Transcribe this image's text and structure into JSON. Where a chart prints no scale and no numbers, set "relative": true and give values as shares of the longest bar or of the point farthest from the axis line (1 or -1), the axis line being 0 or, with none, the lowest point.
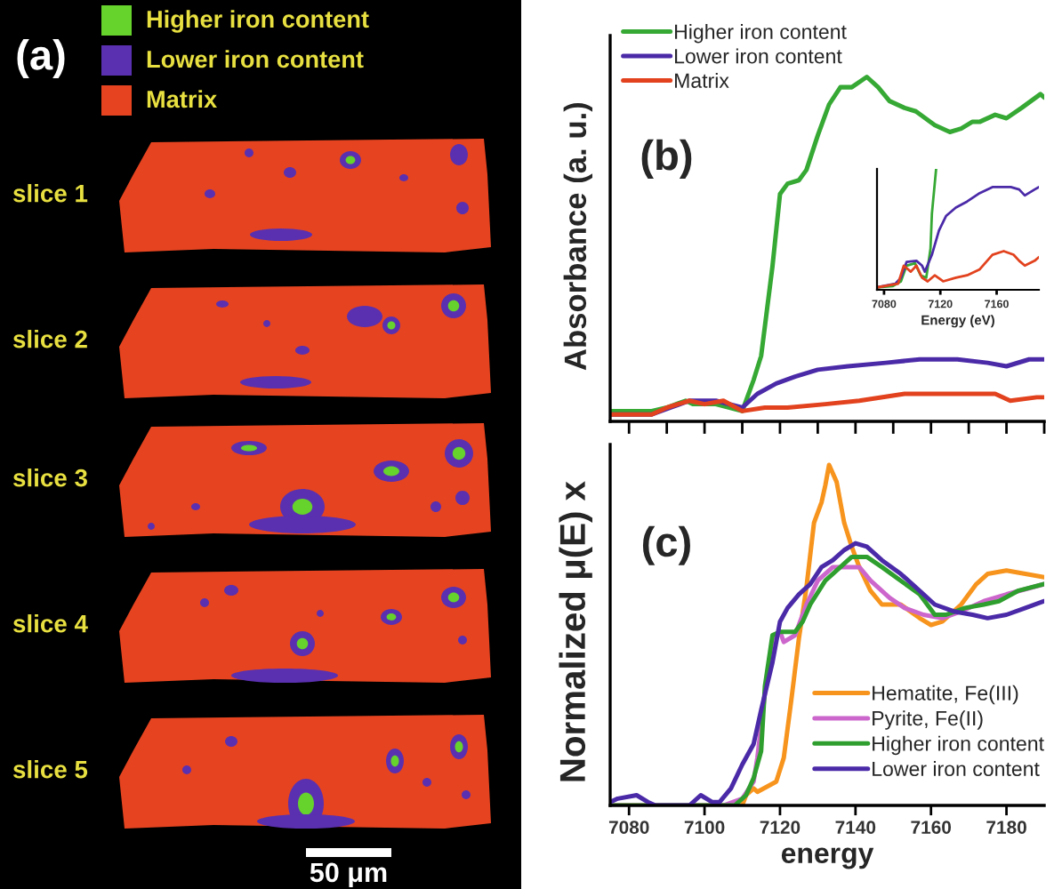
{
  "chart_data": [
    {
      "type": "other",
      "title": "(a)",
      "categories": [
        "Higher iron content",
        "Lower iron content",
        "Matrix"
      ],
      "colors": [
        "#66d22c",
        "#5a30b0",
        "#e64420"
      ],
      "annotations": [
        "slice 1",
        "slice 2",
        "slice 3",
        "slice 4",
        "slice 5",
        "50 μm"
      ]
    },
    {
      "type": "line",
      "title": "(b)",
      "ylabel": "Absorbance (a. u.)",
      "relative": true,
      "xlim": [
        7075,
        7190
      ],
      "xticks": [
        {
          "value": 7080,
          "label": null
        },
        {
          "value": 7090,
          "label": null
        },
        {
          "value": 7100,
          "label": null
        },
        {
          "value": 7110,
          "label": null
        },
        {
          "value": 7120,
          "label": null
        },
        {
          "value": 7130,
          "label": null
        },
        {
          "value": 7140,
          "label": null
        },
        {
          "value": 7150,
          "label": null
        },
        {
          "value": 7160,
          "label": null
        },
        {
          "value": 7170,
          "label": null
        },
        {
          "value": 7180,
          "label": null
        },
        {
          "value": 7190,
          "label": null
        }
      ],
      "tick_labels": false,
      "legend": "top left",
      "series": [
        {
          "name": "Higher iron content",
          "color": "#36a834",
          "x": [
            7075,
            7086,
            7090,
            7095,
            7097,
            7103,
            7110,
            7113,
            7115,
            7118,
            7120,
            7122,
            7125,
            7127,
            7130,
            7133,
            7136,
            7139,
            7143,
            7146,
            7149,
            7153,
            7156,
            7161,
            7165,
            7168,
            7171,
            7173,
            7177,
            7180,
            7184,
            7189,
            7190
          ],
          "values": [
            0.03,
            0.03,
            0.04,
            0.06,
            0.05,
            0.05,
            0.03,
            0.12,
            0.19,
            0.45,
            0.66,
            0.69,
            0.7,
            0.73,
            0.83,
            0.92,
            0.97,
            0.97,
            1.0,
            0.97,
            0.93,
            0.91,
            0.9,
            0.86,
            0.84,
            0.85,
            0.87,
            0.87,
            0.89,
            0.88,
            0.91,
            0.95,
            0.94
          ]
        },
        {
          "name": "Lower iron content",
          "color": "#4b2aa8",
          "x": [
            7075,
            7086,
            7091,
            7096,
            7103,
            7110,
            7114,
            7119,
            7124,
            7130,
            7138,
            7148,
            7157,
            7167,
            7175,
            7180,
            7186,
            7190
          ],
          "values": [
            0.02,
            0.02,
            0.04,
            0.06,
            0.06,
            0.04,
            0.08,
            0.11,
            0.13,
            0.15,
            0.16,
            0.17,
            0.18,
            0.18,
            0.17,
            0.16,
            0.18,
            0.18
          ]
        },
        {
          "name": "Matrix",
          "color": "#e2421e",
          "x": [
            7075,
            7086,
            7090,
            7096,
            7100,
            7105,
            7110,
            7116,
            7122,
            7132,
            7141,
            7153,
            7164,
            7177,
            7181,
            7188,
            7190
          ],
          "values": [
            0.02,
            0.02,
            0.04,
            0.06,
            0.05,
            0.06,
            0.03,
            0.04,
            0.04,
            0.05,
            0.06,
            0.08,
            0.08,
            0.08,
            0.06,
            0.07,
            0.07
          ]
        }
      ]
    },
    {
      "type": "line",
      "xlabel": "Energy (eV)",
      "relative": true,
      "xlim": [
        7075,
        7190
      ],
      "xticks": [
        7080,
        7120,
        7160
      ],
      "tick_labels": "x",
      "series": [
        {
          "color": "#36a834",
          "x": [
            7075,
            7086,
            7092,
            7096,
            7102,
            7106,
            7110,
            7113,
            7114,
            7117
          ],
          "values": [
            0.02,
            0.03,
            0.07,
            0.2,
            0.22,
            0.12,
            0.1,
            0.34,
            0.63,
            1.0
          ]
        },
        {
          "color": "#4b2aa8",
          "x": [
            7075,
            7088,
            7092,
            7096,
            7103,
            7107,
            7109,
            7114,
            7119,
            7124,
            7131,
            7139,
            7148,
            7157,
            7170,
            7176,
            7180,
            7187,
            7190
          ],
          "values": [
            0.02,
            0.05,
            0.1,
            0.23,
            0.24,
            0.2,
            0.15,
            0.29,
            0.49,
            0.61,
            0.68,
            0.73,
            0.8,
            0.85,
            0.85,
            0.83,
            0.78,
            0.83,
            0.85
          ]
        },
        {
          "color": "#e2421e",
          "x": [
            7075,
            7090,
            7094,
            7099,
            7103,
            7107,
            7111,
            7116,
            7122,
            7131,
            7139,
            7148,
            7157,
            7165,
            7172,
            7176,
            7180,
            7187,
            7190
          ],
          "values": [
            0.02,
            0.05,
            0.2,
            0.15,
            0.2,
            0.1,
            0.07,
            0.12,
            0.07,
            0.1,
            0.12,
            0.17,
            0.29,
            0.32,
            0.29,
            0.24,
            0.2,
            0.24,
            0.27
          ]
        }
      ]
    },
    {
      "type": "line",
      "title": "(c)",
      "xlabel": "energy",
      "ylabel": "Normalized μ(E) x",
      "relative": true,
      "xlim": [
        7075,
        7190
      ],
      "xticks": [
        7080,
        7100,
        7120,
        7140,
        7160,
        7180
      ],
      "tick_labels": "x",
      "legend": "bottom right",
      "series": [
        {
          "name": "Hematite, Fe(III)",
          "color": "#f7941d",
          "x": [
            7075,
            7110,
            7111,
            7113,
            7114,
            7119,
            7121,
            7123,
            7125,
            7127,
            7129,
            7131,
            7132,
            7133,
            7135,
            7137,
            7139,
            7141,
            7144,
            7147,
            7152,
            7157,
            7160,
            7163,
            7168,
            7172,
            7175,
            7180,
            7185,
            7190
          ],
          "values": [
            0,
            0,
            0.03,
            0.05,
            0.04,
            0.07,
            0.14,
            0.31,
            0.49,
            0.64,
            0.83,
            0.89,
            0.94,
            1.0,
            0.95,
            0.83,
            0.76,
            0.7,
            0.63,
            0.59,
            0.59,
            0.55,
            0.53,
            0.54,
            0.59,
            0.65,
            0.68,
            0.69,
            0.68,
            0.67
          ]
        },
        {
          "name": "Pyrite, Fe(II)",
          "color": "#cc66cc",
          "x": [
            7075,
            7105,
            7110,
            7113,
            7114,
            7116,
            7118,
            7120,
            7121,
            7124,
            7127,
            7130,
            7134,
            7138,
            7141,
            7144,
            7149,
            7153,
            7158,
            7163,
            7168,
            7174,
            7180,
            7190
          ],
          "values": [
            0,
            0,
            0.02,
            0.07,
            0.14,
            0.33,
            0.49,
            0.51,
            0.48,
            0.5,
            0.59,
            0.66,
            0.7,
            0.7,
            0.7,
            0.66,
            0.61,
            0.58,
            0.56,
            0.55,
            0.57,
            0.6,
            0.62,
            0.65
          ]
        },
        {
          "name": "Higher iron content",
          "color": "#2e9e2e",
          "x": [
            7075,
            7108,
            7111,
            7113,
            7115,
            7116,
            7118,
            7120,
            7124,
            7126,
            7128,
            7132,
            7136,
            7139,
            7143,
            7147,
            7152,
            7157,
            7161,
            7164,
            7169,
            7174,
            7178,
            7183,
            7190
          ],
          "values": [
            0,
            0,
            0.03,
            0.08,
            0.16,
            0.35,
            0.5,
            0.51,
            0.51,
            0.54,
            0.59,
            0.66,
            0.7,
            0.73,
            0.73,
            0.7,
            0.66,
            0.62,
            0.56,
            0.56,
            0.58,
            0.59,
            0.6,
            0.63,
            0.65
          ]
        },
        {
          "name": "Lower iron content",
          "color": "#4b2aa8",
          "x": [
            7075,
            7077,
            7082,
            7085,
            7087,
            7096,
            7099,
            7102,
            7104,
            7107,
            7110,
            7113,
            7115,
            7118,
            7120,
            7122,
            7125,
            7128,
            7131,
            7134,
            7137,
            7140,
            7143,
            7147,
            7152,
            7157,
            7161,
            7166,
            7171,
            7175,
            7180,
            7185,
            7190
          ],
          "values": [
            0.01,
            0.02,
            0.03,
            0.01,
            0,
            0,
            0.03,
            0.01,
            0.01,
            0.05,
            0.12,
            0.18,
            0.28,
            0.42,
            0.54,
            0.58,
            0.62,
            0.65,
            0.7,
            0.72,
            0.75,
            0.77,
            0.76,
            0.72,
            0.68,
            0.63,
            0.59,
            0.57,
            0.56,
            0.55,
            0.56,
            0.58,
            0.6
          ]
        }
      ]
    }
  ]
}
